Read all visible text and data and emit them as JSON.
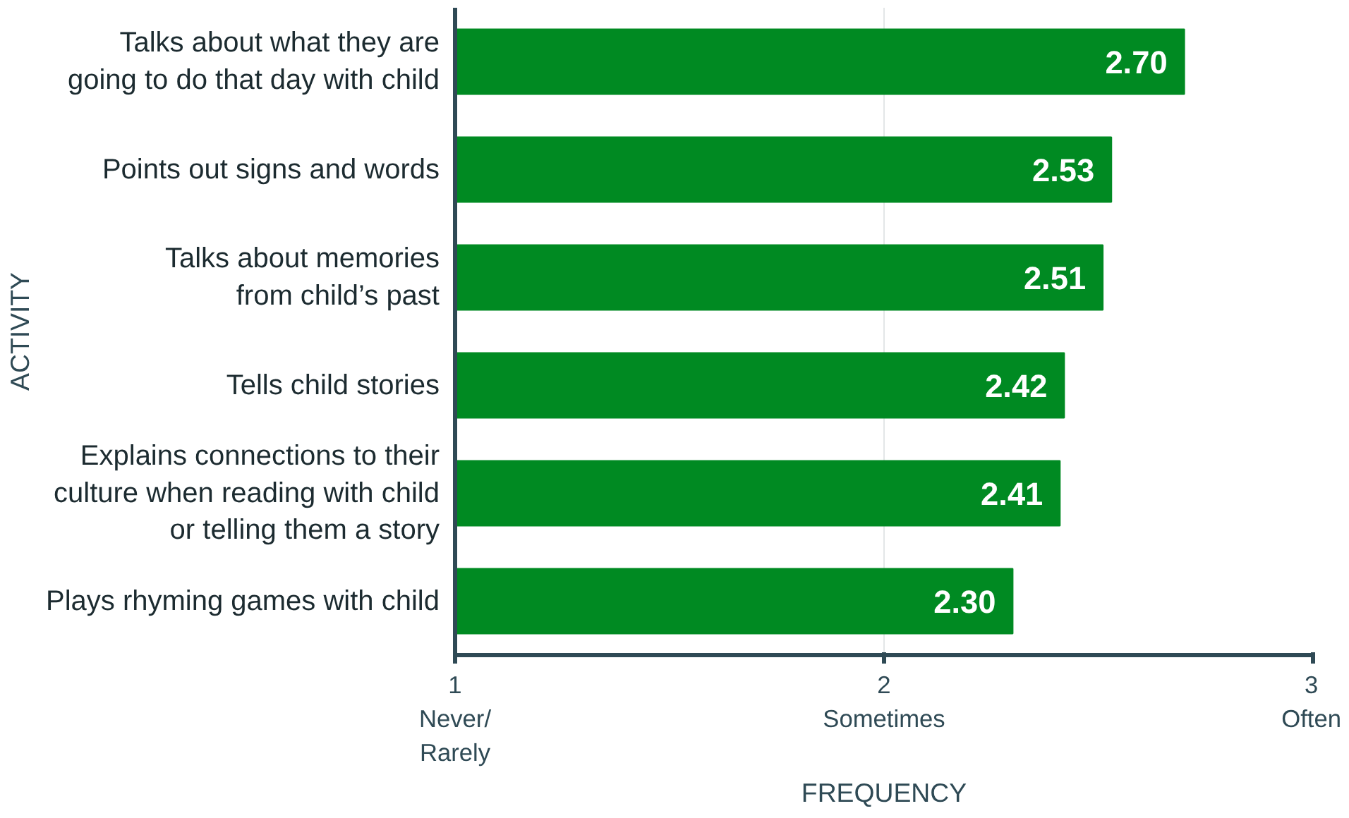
{
  "chart_data": {
    "type": "bar",
    "orientation": "horizontal",
    "xlabel": "FREQUENCY",
    "ylabel": "ACTIVITY",
    "categories": [
      "Talks about what they are\ngoing to do that day with child",
      "Points out signs and words",
      "Talks about memories\nfrom child’s past",
      "Tells child stories",
      "Explains connections to their\nculture when reading with child\nor telling them a story",
      "Plays rhyming games with child"
    ],
    "values": [
      2.7,
      2.53,
      2.51,
      2.42,
      2.41,
      2.3
    ],
    "value_labels": [
      "2.70",
      "2.53",
      "2.51",
      "2.42",
      "2.41",
      "2.30"
    ],
    "color": "#008a22",
    "xlim": [
      1,
      3
    ],
    "xticks": [
      {
        "value": 1,
        "label": "1\nNever/\nRarely"
      },
      {
        "value": 2,
        "label": "2\nSometimes"
      },
      {
        "value": 3,
        "label": "3\nOften"
      }
    ],
    "grid": "x"
  }
}
